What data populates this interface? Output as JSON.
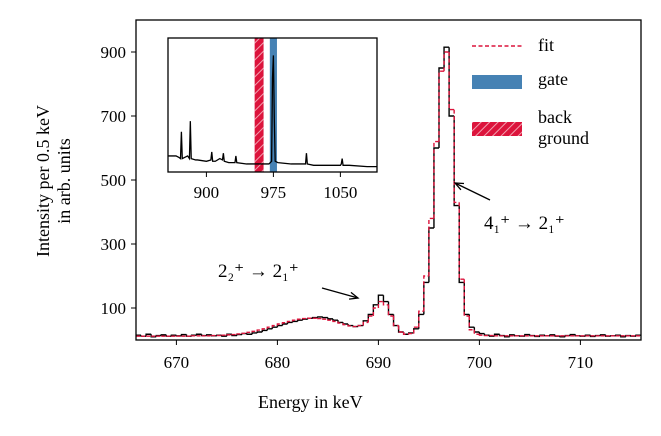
{
  "chart_data": {
    "type": "histogram",
    "xlabel": "Energy in keV",
    "ylabel": "Intensity per 0.5 keV\nin arb. units",
    "bins": [
      666,
      666.5,
      667,
      667.5,
      668,
      668.5,
      669,
      669.5,
      670,
      670.5,
      671,
      671.5,
      672,
      672.5,
      673,
      673.5,
      674,
      674.5,
      675,
      675.5,
      676,
      676.5,
      677,
      677.5,
      678,
      678.5,
      679,
      679.5,
      680,
      680.5,
      681,
      681.5,
      682,
      682.5,
      683,
      683.5,
      684,
      684.5,
      685,
      685.5,
      686,
      686.5,
      687,
      687.5,
      688,
      688.5,
      689,
      689.5,
      690,
      690.5,
      691,
      691.5,
      692,
      692.5,
      693,
      693.5,
      694,
      694.5,
      695,
      695.5,
      696,
      696.5,
      697,
      697.5,
      698,
      698.5,
      699,
      699.5,
      700,
      700.5,
      701,
      701.5,
      702,
      702.5,
      703,
      703.5,
      704,
      704.5,
      705,
      705.5,
      706,
      706.5,
      707,
      707.5,
      708,
      708.5,
      709,
      709.5,
      710,
      710.5,
      711,
      711.5,
      712,
      712.5,
      713,
      713.5,
      714,
      714.5,
      715,
      715.5,
      716
    ],
    "values": [
      15,
      12,
      18,
      10,
      14,
      16,
      12,
      15,
      13,
      17,
      12,
      15,
      18,
      14,
      16,
      13,
      15,
      12,
      18,
      14,
      17,
      20,
      18,
      22,
      25,
      30,
      35,
      40,
      45,
      50,
      55,
      58,
      62,
      65,
      68,
      70,
      72,
      70,
      66,
      62,
      55,
      50,
      45,
      42,
      45,
      60,
      80,
      110,
      140,
      120,
      80,
      45,
      25,
      18,
      22,
      35,
      80,
      180,
      350,
      600,
      850,
      915,
      700,
      420,
      180,
      80,
      40,
      25,
      20,
      15,
      12,
      18,
      14,
      10,
      16,
      13,
      12,
      17,
      14,
      11,
      15,
      13,
      16,
      12,
      10,
      14,
      17,
      13,
      12,
      15,
      11,
      14,
      16,
      12,
      13,
      15,
      10,
      14,
      12,
      15
    ],
    "color": "#000000",
    "series": [
      {
        "name": "fit",
        "color": "#dc143c",
        "style": "dashed",
        "values": [
          12,
          12,
          12,
          12,
          12,
          12,
          12,
          12,
          12,
          12,
          12,
          13,
          13,
          13,
          13,
          14,
          14,
          15,
          16,
          17,
          19,
          21,
          24,
          27,
          31,
          35,
          40,
          45,
          50,
          54,
          58,
          62,
          65,
          67,
          68,
          68,
          67,
          65,
          62,
          58,
          53,
          48,
          44,
          42,
          45,
          55,
          75,
          100,
          120,
          110,
          75,
          45,
          25,
          18,
          20,
          40,
          90,
          200,
          380,
          620,
          840,
          900,
          720,
          430,
          190,
          75,
          32,
          18,
          15,
          14,
          14,
          13,
          13,
          13,
          13,
          13,
          13,
          13,
          13,
          13,
          13,
          13,
          13,
          13,
          13,
          13,
          13,
          13,
          13,
          13,
          13,
          13,
          13,
          13,
          13,
          13,
          13,
          13,
          13,
          13
        ]
      }
    ],
    "xlim": [
      666,
      716
    ],
    "ylim": [
      0,
      1000
    ],
    "xticks": [
      670,
      680,
      690,
      700,
      710
    ],
    "yticks": [
      100,
      300,
      500,
      700,
      900
    ],
    "annotations": [
      {
        "text": "2₂⁺ → 2₁⁺"
      },
      {
        "text": "4₁⁺ → 2₁⁺"
      }
    ],
    "inset": {
      "type": "line",
      "x": [
        857,
        866,
        869,
        871,
        872,
        873,
        879,
        881,
        882,
        883,
        888,
        890,
        900,
        905,
        906,
        907,
        910,
        915,
        918,
        919,
        920,
        925,
        932,
        933,
        934,
        945,
        960,
        970,
        973,
        974,
        975,
        976,
        977,
        980,
        995,
        1010,
        1011,
        1012,
        1013,
        1020,
        1040,
        1050,
        1051,
        1052,
        1053,
        1060,
        1080,
        1091
      ],
      "values": [
        12,
        12,
        11,
        10,
        30,
        10,
        12,
        10,
        38,
        10,
        9,
        9,
        8,
        9,
        15,
        8,
        8,
        10,
        9,
        14,
        8,
        7,
        7,
        12,
        7,
        6,
        6,
        6,
        8,
        70,
        87,
        40,
        8,
        7,
        6,
        6,
        6,
        14,
        6,
        5,
        5,
        5,
        6,
        10,
        5,
        5,
        4,
        4
      ],
      "color": "#000000",
      "xlim": [
        857,
        1091
      ],
      "ylim": [
        0,
        100
      ],
      "xticks": [
        900,
        975,
        1050
      ],
      "bands": [
        {
          "name": "gate",
          "color": "#4682b4",
          "range": [
            971,
            979
          ]
        },
        {
          "name": "back\nground",
          "color": "#dc143c",
          "range": [
            954,
            964
          ],
          "hatch": true
        }
      ]
    }
  }
}
